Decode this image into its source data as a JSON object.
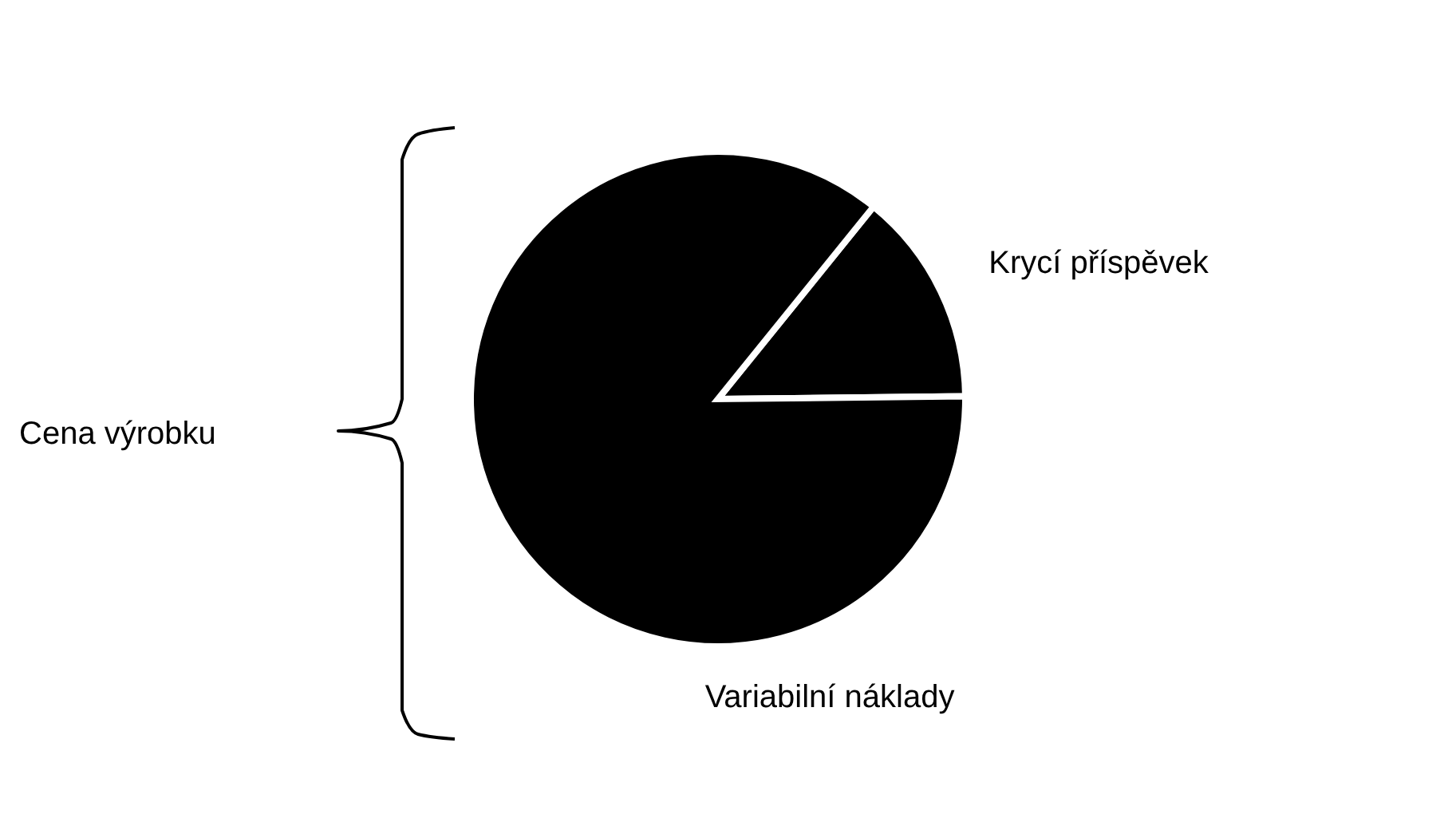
{
  "chart_data": {
    "type": "pie",
    "categories": [
      "Krycí příspěvek",
      "Variabilní náklady"
    ],
    "values": [
      14,
      86
    ],
    "colors": [
      "#000000",
      "#000000"
    ],
    "annotations": [
      "Cena výrobku"
    ],
    "legend": false
  }
}
